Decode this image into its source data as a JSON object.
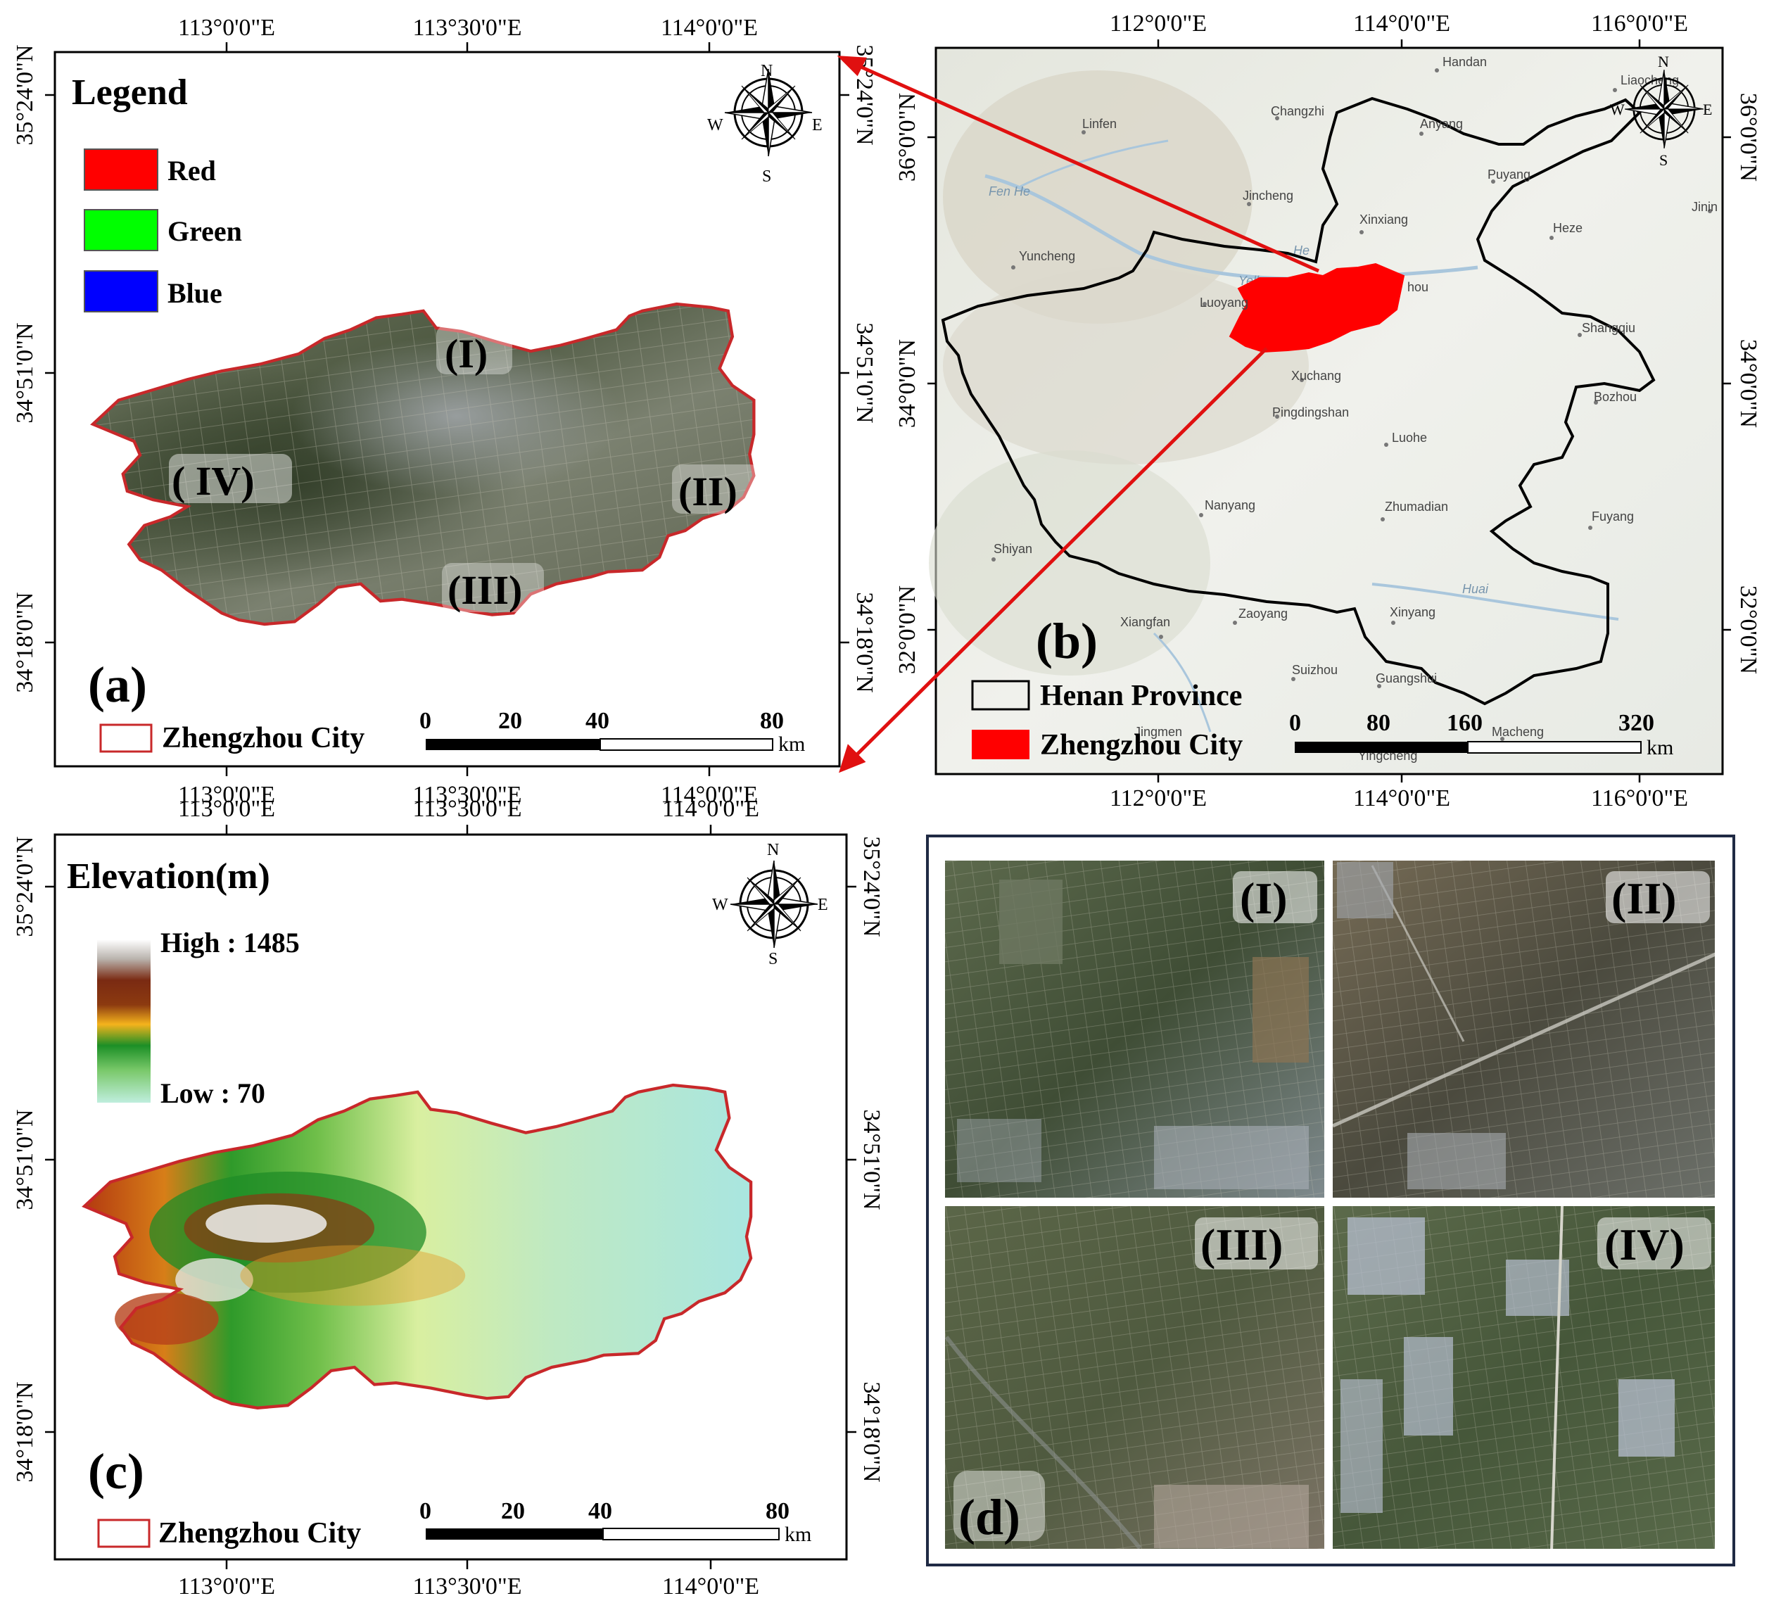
{
  "panel_a": {
    "label": "(a)",
    "legend_title": "Legend",
    "legend_items": [
      {
        "label": "Red",
        "color": "#ff0000"
      },
      {
        "label": "Green",
        "color": "#00ff00"
      },
      {
        "label": "Blue",
        "color": "#0000ff"
      }
    ],
    "region_labels": [
      "(I)",
      "(II)",
      "(III)",
      "( IV)"
    ],
    "boundary_legend": "Zhengzhou City",
    "boundary_color": "#c8282a",
    "lon_ticks": [
      "113°0'0\"E",
      "113°30'0\"E",
      "114°0'0\"E"
    ],
    "lat_ticks_left": [
      "35°24'0\"N",
      "34°51'0\"N",
      "34°18'0\"N"
    ],
    "lat_ticks_right": [
      "35°24'0\"N",
      "34°51'0\"N",
      "34°18'0\"N"
    ],
    "scale_ticks": [
      "0",
      "20",
      "40",
      "80"
    ],
    "scale_unit": "km",
    "compass": {
      "n": "N",
      "s": "S",
      "e": "E",
      "w": "W"
    }
  },
  "panel_b": {
    "label": "(b)",
    "cities": [
      "Handan",
      "Liaocheng",
      "Linfen",
      "Changzhi",
      "Anyang",
      "Puyang",
      "Jincheng",
      "Xinxiang",
      "Heze",
      "Jinin",
      "Yuncheng",
      "Luoyang",
      "hou",
      "Shangqiu",
      "Xuchang",
      "Bozhou",
      "Pingdingshan",
      "Luohe",
      "Nanyang",
      "Zhumadian",
      "Fuyang",
      "Shiyan",
      "Xiangfan",
      "Zaoyang",
      "Xinyang",
      "Suizhou",
      "Guangshui",
      "Macheng",
      "Jingmen",
      "Yingcheng"
    ],
    "rivers": [
      "Fen He",
      "He",
      "Yellow",
      "Huai"
    ],
    "legend_province": "Henan Province",
    "legend_city": "Zhengzhou City",
    "highlight_color": "#ff0000",
    "lon_ticks": [
      "112°0'0\"E",
      "114°0'0\"E",
      "116°0'0\"E"
    ],
    "lat_ticks_right": [
      "36°0'0\"N",
      "34°0'0\"N",
      "32°0'0\"N"
    ],
    "scale_ticks": [
      "0",
      "80",
      "160",
      "320"
    ],
    "scale_unit": "km",
    "compass": {
      "n": "N",
      "s": "S",
      "e": "E",
      "w": "W"
    }
  },
  "panel_c": {
    "label": "(c)",
    "legend_title": "Elevation(m)",
    "high_label": "High : 1485",
    "low_label": "Low : 70",
    "boundary_legend": "Zhengzhou City",
    "lon_ticks": [
      "113°0'0\"E",
      "113°30'0\"E",
      "114°0'0\"E"
    ],
    "lat_ticks_left": [
      "35°24'0\"N",
      "34°51'0\"N",
      "34°18'0\"N"
    ],
    "lat_ticks_right": [
      "35°24'0\"N",
      "34°51'0\"N",
      "34°18'0\"N"
    ],
    "scale_ticks": [
      "0",
      "20",
      "40",
      "80"
    ],
    "scale_unit": "km",
    "compass": {
      "n": "N",
      "s": "S",
      "e": "E",
      "w": "W"
    }
  },
  "panel_d": {
    "label": "(d)",
    "tiles": [
      "(I)",
      "(II)",
      "(III)",
      "(IV)"
    ]
  }
}
